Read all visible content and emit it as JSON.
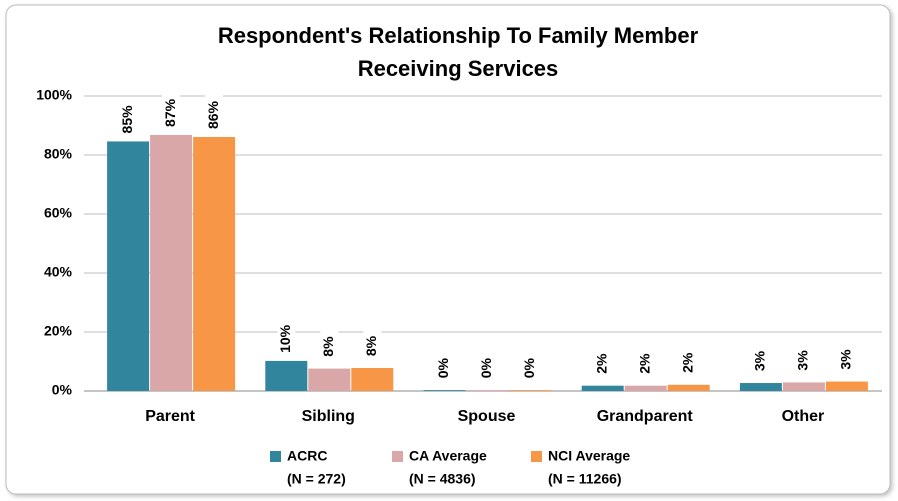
{
  "chart_data": {
    "type": "bar",
    "title": [
      "Respondent's Relationship To Family Member",
      "Receiving Services"
    ],
    "categories": [
      "Parent",
      "Sibling",
      "Spouse",
      "Grandparent",
      "Other"
    ],
    "series": [
      {
        "name": "ACRC",
        "note": "(N = 272)",
        "color": "#31859c",
        "values": [
          84.6,
          10.2,
          0.3,
          1.8,
          2.7
        ],
        "value_labels": [
          "85%",
          "10%",
          "0%",
          "2%",
          "3%"
        ]
      },
      {
        "name": "CA Average",
        "note": "(N = 4836)",
        "color": "#d9a7a7",
        "values": [
          86.8,
          7.6,
          0.3,
          1.8,
          2.9
        ],
        "value_labels": [
          "87%",
          "8%",
          "0%",
          "2%",
          "3%"
        ]
      },
      {
        "name": "NCI Average",
        "note": "(N = 11266)",
        "color": "#f79646",
        "values": [
          86.1,
          7.8,
          0.3,
          2.1,
          3.2
        ],
        "value_labels": [
          "86%",
          "8%",
          "0%",
          "2%",
          "3%"
        ]
      }
    ],
    "ylim": [
      0,
      100
    ],
    "yticks": [
      {
        "value": 0,
        "label": "0%"
      },
      {
        "value": 20,
        "label": "20%"
      },
      {
        "value": 40,
        "label": "40%"
      },
      {
        "value": 60,
        "label": "60%"
      },
      {
        "value": 80,
        "label": "80%"
      },
      {
        "value": 100,
        "label": "100%"
      }
    ],
    "grid": true
  }
}
